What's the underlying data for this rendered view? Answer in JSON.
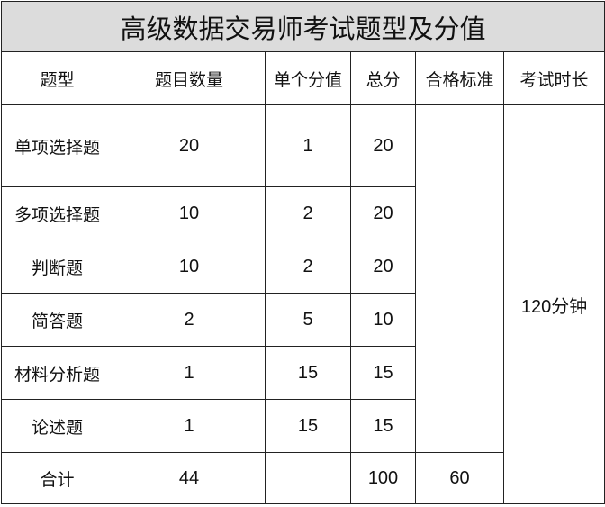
{
  "title": "高级数据交易师考试题型及分值",
  "headers": [
    "题型",
    "题目数量",
    "单个分值",
    "总分",
    "合格标准",
    "考试时长"
  ],
  "rows": [
    {
      "type": "单项选择题",
      "count": "20",
      "each": "1",
      "total": "20"
    },
    {
      "type": "多项选择题",
      "count": "10",
      "each": "2",
      "total": "20"
    },
    {
      "type": "判断题",
      "count": "10",
      "each": "2",
      "total": "20"
    },
    {
      "type": "简答题",
      "count": "2",
      "each": "5",
      "total": "10"
    },
    {
      "type": "材料分析题",
      "count": "1",
      "each": "15",
      "total": "15"
    },
    {
      "type": "论述题",
      "count": "1",
      "each": "15",
      "total": "15"
    }
  ],
  "summary": {
    "label": "合计",
    "count": "44",
    "each": "",
    "total": "100",
    "pass": "60"
  },
  "duration": "120分钟"
}
